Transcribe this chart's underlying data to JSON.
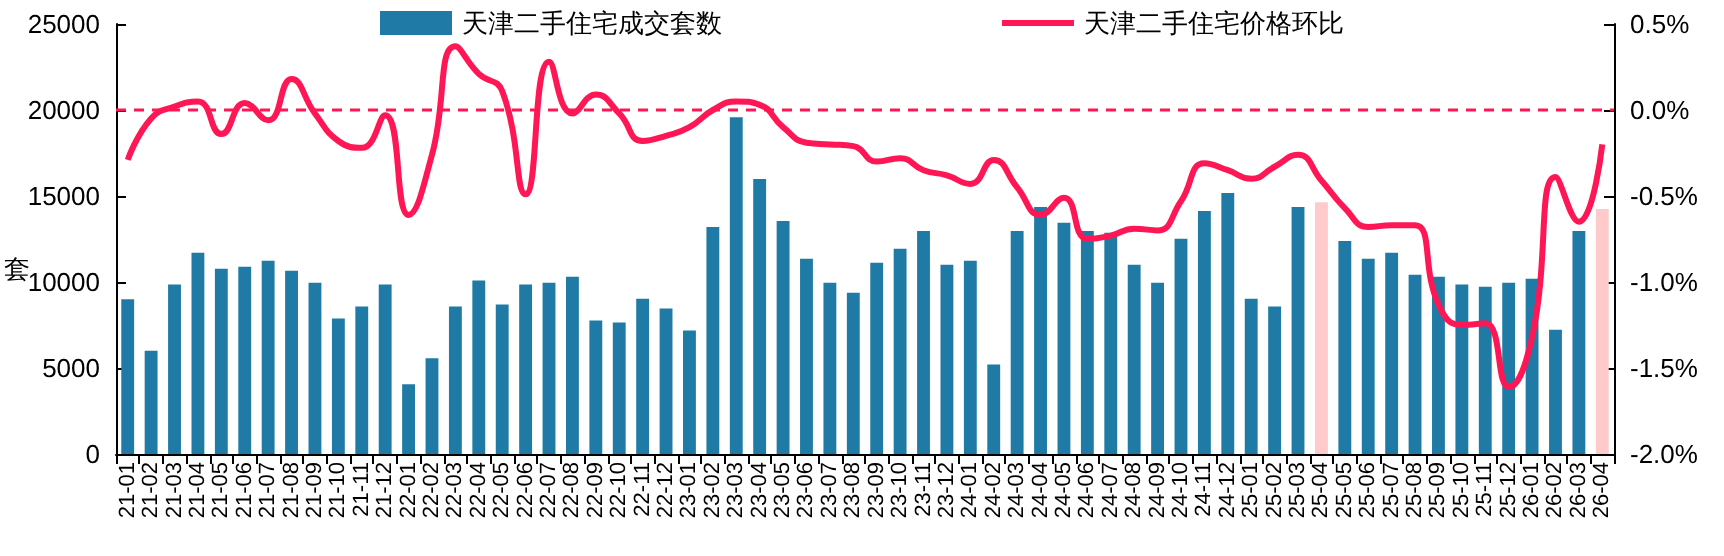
{
  "chart_data": {
    "type": "bar",
    "ylabel": "套",
    "legend": "top",
    "marker": "none",
    "grid": false,
    "categories": [
      "21-01",
      "21-02",
      "21-03",
      "21-04",
      "21-05",
      "21-06",
      "21-07",
      "21-08",
      "21-09",
      "21-10",
      "21-11",
      "21-12",
      "22-01",
      "22-02",
      "22-03",
      "22-04",
      "22-05",
      "22-06",
      "22-07",
      "22-08",
      "22-09",
      "22-10",
      "22-11",
      "22-12",
      "23-01",
      "23-02",
      "23-03",
      "23-04",
      "23-05",
      "23-06",
      "23-07",
      "23-08",
      "23-09",
      "23-10",
      "23-11",
      "23-12",
      "24-01",
      "24-02",
      "24-03",
      "24-04",
      "24-05",
      "24-06",
      "24-07",
      "24-08",
      "24-09",
      "24-10",
      "24-11",
      "24-12",
      "25-01",
      "25-02",
      "25-03",
      "25-04",
      "25-05",
      "25-06",
      "25-07",
      "25-08",
      "25-09",
      "25-10",
      "25-11",
      "25-12",
      "26-01",
      "26-02",
      "26-03",
      "26-04"
    ],
    "series": [
      {
        "name": "天津二手住宅成交套数",
        "color": "#1f7ba5",
        "colors": [
          "#1f7ba5",
          "#1f7ba5",
          "#1f7ba5",
          "#1f7ba5",
          "#1f7ba5",
          "#1f7ba5",
          "#1f7ba5",
          "#1f7ba5",
          "#1f7ba5",
          "#1f7ba5",
          "#1f7ba5",
          "#1f7ba5",
          "#1f7ba5",
          "#1f7ba5",
          "#1f7ba5",
          "#1f7ba5",
          "#1f7ba5",
          "#1f7ba5",
          "#1f7ba5",
          "#1f7ba5",
          "#1f7ba5",
          "#1f7ba5",
          "#1f7ba5",
          "#1f7ba5",
          "#1f7ba5",
          "#1f7ba5",
          "#1f7ba5",
          "#1f7ba5",
          "#1f7ba5",
          "#1f7ba5",
          "#1f7ba5",
          "#1f7ba5",
          "#1f7ba5",
          "#1f7ba5",
          "#1f7ba5",
          "#1f7ba5",
          "#1f7ba5",
          "#1f7ba5",
          "#1f7ba5",
          "#1f7ba5",
          "#1f7ba5",
          "#1f7ba5",
          "#1f7ba5",
          "#1f7ba5",
          "#1f7ba5",
          "#1f7ba5",
          "#1f7ba5",
          "#1f7ba5",
          "#1f7ba5",
          "#1f7ba5",
          "#1f7ba5",
          "#ffcaca",
          "#1f7ba5",
          "#1f7ba5",
          "#1f7ba5",
          "#1f7ba5",
          "#1f7ba5",
          "#1f7ba5",
          "#1f7ba5",
          "#1f7ba5",
          "#1f7ba5",
          "#1f7ba5",
          "#1f7ba5",
          "#ffcaca"
        ],
        "values": [
          9000,
          6000,
          9850,
          11700,
          10770,
          10890,
          11240,
          10660,
          9960,
          7880,
          8570,
          9850,
          4050,
          5560,
          8570,
          10080,
          8690,
          9850,
          9960,
          10310,
          7760,
          7650,
          9030,
          8460,
          7180,
          13200,
          19580,
          15990,
          13550,
          11350,
          9960,
          9380,
          11120,
          11930,
          12970,
          11000,
          11240,
          5210,
          12970,
          14360,
          13440,
          12970,
          12860,
          11000,
          9960,
          12510,
          14130,
          15170,
          9030,
          8570,
          14360,
          14630,
          12390,
          11350,
          11700,
          10420,
          10310,
          9850,
          9730,
          9960,
          10190,
          7220,
          12970,
          14250
        ]
      },
      {
        "name": "天津二手住宅价格环比",
        "type": "line",
        "axis": "y2",
        "color": "#ff1654",
        "values": [
          -0.29,
          -0.05,
          0.02,
          0.05,
          -0.14,
          0.04,
          -0.06,
          0.18,
          -0.02,
          -0.18,
          -0.22,
          -0.03,
          -0.61,
          -0.26,
          0.37,
          0.21,
          0.11,
          -0.49,
          0.28,
          -0.02,
          0.09,
          -0.02,
          -0.18,
          -0.15,
          -0.1,
          0.0,
          0.05,
          0.03,
          -0.1,
          -0.19,
          -0.2,
          -0.21,
          -0.3,
          -0.28,
          -0.35,
          -0.38,
          -0.43,
          -0.29,
          -0.45,
          -0.61,
          -0.51,
          -0.75,
          -0.73,
          -0.69,
          -0.7,
          -0.53,
          -0.31,
          -0.35,
          -0.4,
          -0.33,
          -0.26,
          -0.41,
          -0.57,
          -0.68,
          -0.67,
          -0.67,
          -1.13,
          -1.25,
          -1.24,
          -1.61,
          -1.32,
          -0.39,
          -0.65,
          -0.2
        ]
      }
    ],
    "ylim": [
      0,
      25000
    ],
    "yticks": [
      0,
      5000,
      10000,
      15000,
      20000,
      25000
    ],
    "y2lim": [
      -2.0,
      0.5
    ],
    "y2ticks": [
      {
        "value": -2.0,
        "label": "-2.0%"
      },
      {
        "value": -1.5,
        "label": "-1.5%"
      },
      {
        "value": -1.0,
        "label": "-1.0%"
      },
      {
        "value": -0.5,
        "label": "-0.5%"
      },
      {
        "value": 0.0,
        "label": "0.0%"
      },
      {
        "value": 0.5,
        "label": "0.5%"
      }
    ],
    "ref_lines": [
      {
        "axis": "y2",
        "value": 0.0,
        "color": "#ff1654",
        "line_style": "dashed"
      }
    ]
  }
}
